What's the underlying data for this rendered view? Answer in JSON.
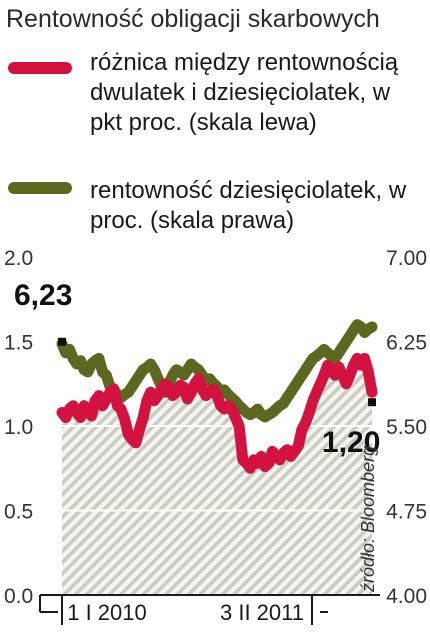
{
  "chart_data": {
    "type": "line",
    "title": "Rentowność obligacji skarbowych",
    "series": [
      {
        "name": "różnica między rentownością dwulatek i dziesięciolatek, w pkt proc. (skala lewa)",
        "axis": "left",
        "color": "#d3123f",
        "values": [
          1.08,
          1.05,
          1.1,
          1.12,
          1.08,
          1.05,
          1.12,
          1.1,
          1.06,
          1.15,
          1.18,
          1.12,
          1.16,
          1.2,
          1.22,
          1.12,
          1.1,
          1.04,
          0.95,
          0.92,
          0.9,
          0.98,
          1.05,
          1.15,
          1.2,
          1.15,
          1.18,
          1.22,
          1.25,
          1.22,
          1.18,
          1.2,
          1.24,
          1.23,
          1.16,
          1.2,
          1.25,
          1.28,
          1.22,
          1.18,
          1.2,
          1.22,
          1.18,
          1.12,
          1.1,
          1.12,
          1.1,
          1.05,
          1.0,
          0.8,
          0.78,
          0.75,
          0.8,
          0.78,
          0.82,
          0.76,
          0.78,
          0.85,
          0.82,
          0.8,
          0.84,
          0.86,
          0.82,
          0.85,
          0.88,
          0.98,
          1.02,
          1.08,
          1.15,
          1.2,
          1.25,
          1.3,
          1.36,
          1.33,
          1.3,
          1.35,
          1.3,
          1.25,
          1.3,
          1.36,
          1.4,
          1.36,
          1.4,
          1.32,
          1.2
        ]
      },
      {
        "name": "rentowność dziesięciolatek, w proc. (skala prawa)",
        "axis": "right",
        "color": "#5c6820",
        "values": [
          6.23,
          6.15,
          6.18,
          6.1,
          6.05,
          6.08,
          6.0,
          5.98,
          6.05,
          6.08,
          6.1,
          5.98,
          5.95,
          5.85,
          5.82,
          5.78,
          5.75,
          5.78,
          5.8,
          5.85,
          5.9,
          5.95,
          6.0,
          6.02,
          6.05,
          6.0,
          5.92,
          5.85,
          5.8,
          5.88,
          5.95,
          6.0,
          5.98,
          5.95,
          6.0,
          6.05,
          6.02,
          6.0,
          5.95,
          5.9,
          5.92,
          5.88,
          5.85,
          5.8,
          5.82,
          5.78,
          5.75,
          5.72,
          5.68,
          5.65,
          5.62,
          5.6,
          5.62,
          5.65,
          5.6,
          5.58,
          5.6,
          5.62,
          5.65,
          5.68,
          5.7,
          5.75,
          5.8,
          5.85,
          5.9,
          5.95,
          6.0,
          6.05,
          6.1,
          6.12,
          6.15,
          6.18,
          6.15,
          6.12,
          6.1,
          6.15,
          6.2,
          6.25,
          6.3,
          6.35,
          6.4,
          6.38,
          6.33,
          6.36,
          6.38
        ]
      }
    ],
    "y_left": {
      "ticks": [
        "2.0",
        "1.5",
        "1.0",
        "0.5",
        "0.0"
      ],
      "range": [
        0,
        2
      ]
    },
    "y_right": {
      "ticks": [
        "7.00",
        "6.25",
        "5.50",
        "4.75",
        "4.00"
      ],
      "range": [
        4,
        7
      ]
    },
    "x_labels": [
      "1 I 2010",
      "3 II 2011"
    ],
    "annotations": {
      "start_value": "6,23",
      "end_value": "1,20"
    },
    "source": "źródło: Bloomberg",
    "grid": "horizontal"
  }
}
